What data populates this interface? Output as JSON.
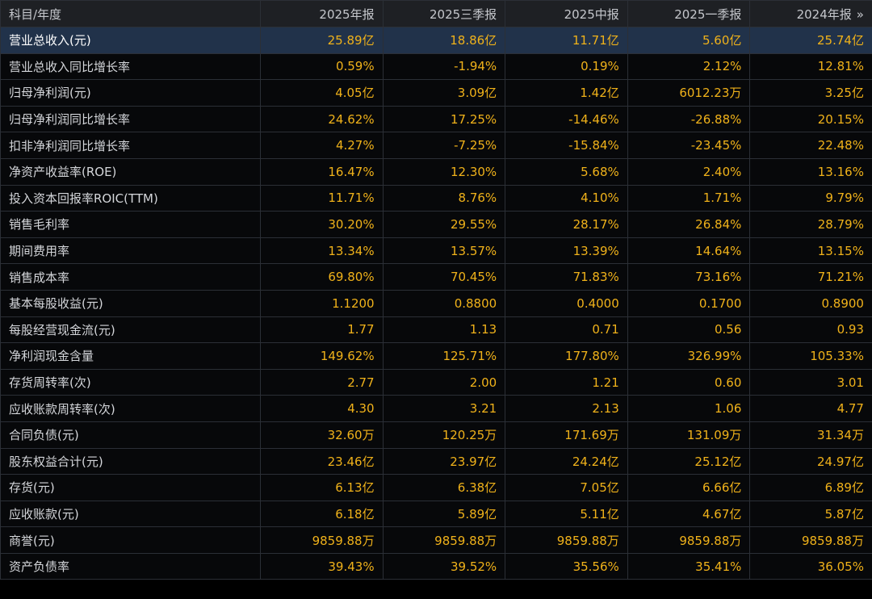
{
  "header": {
    "label_col": "科目/年度",
    "columns": [
      "2025年报",
      "2025三季报",
      "2025中报",
      "2025一季报",
      "2024年报"
    ],
    "more_icon": "»"
  },
  "rows": [
    {
      "label": "营业总收入(元)",
      "values": [
        "25.89亿",
        "18.86亿",
        "11.71亿",
        "5.60亿",
        "25.74亿"
      ],
      "highlight": true
    },
    {
      "label": "营业总收入同比增长率",
      "values": [
        "0.59%",
        "-1.94%",
        "0.19%",
        "2.12%",
        "12.81%"
      ]
    },
    {
      "label": "归母净利润(元)",
      "values": [
        "4.05亿",
        "3.09亿",
        "1.42亿",
        "6012.23万",
        "3.25亿"
      ]
    },
    {
      "label": "归母净利润同比增长率",
      "values": [
        "24.62%",
        "17.25%",
        "-14.46%",
        "-26.88%",
        "20.15%"
      ]
    },
    {
      "label": "扣非净利润同比增长率",
      "values": [
        "4.27%",
        "-7.25%",
        "-15.84%",
        "-23.45%",
        "22.48%"
      ]
    },
    {
      "label": "净资产收益率(ROE)",
      "values": [
        "16.47%",
        "12.30%",
        "5.68%",
        "2.40%",
        "13.16%"
      ]
    },
    {
      "label": "投入资本回报率ROIC(TTM)",
      "values": [
        "11.71%",
        "8.76%",
        "4.10%",
        "1.71%",
        "9.79%"
      ]
    },
    {
      "label": "销售毛利率",
      "values": [
        "30.20%",
        "29.55%",
        "28.17%",
        "26.84%",
        "28.79%"
      ]
    },
    {
      "label": "期间费用率",
      "values": [
        "13.34%",
        "13.57%",
        "13.39%",
        "14.64%",
        "13.15%"
      ]
    },
    {
      "label": "销售成本率",
      "values": [
        "69.80%",
        "70.45%",
        "71.83%",
        "73.16%",
        "71.21%"
      ]
    },
    {
      "label": "基本每股收益(元)",
      "values": [
        "1.1200",
        "0.8800",
        "0.4000",
        "0.1700",
        "0.8900"
      ]
    },
    {
      "label": "每股经营现金流(元)",
      "values": [
        "1.77",
        "1.13",
        "0.71",
        "0.56",
        "0.93"
      ]
    },
    {
      "label": "净利润现金含量",
      "values": [
        "149.62%",
        "125.71%",
        "177.80%",
        "326.99%",
        "105.33%"
      ]
    },
    {
      "label": "存货周转率(次)",
      "values": [
        "2.77",
        "2.00",
        "1.21",
        "0.60",
        "3.01"
      ]
    },
    {
      "label": "应收账款周转率(次)",
      "values": [
        "4.30",
        "3.21",
        "2.13",
        "1.06",
        "4.77"
      ]
    },
    {
      "label": "合同负债(元)",
      "values": [
        "32.60万",
        "120.25万",
        "171.69万",
        "131.09万",
        "31.34万"
      ]
    },
    {
      "label": "股东权益合计(元)",
      "values": [
        "23.46亿",
        "23.97亿",
        "24.24亿",
        "25.12亿",
        "24.97亿"
      ]
    },
    {
      "label": "存货(元)",
      "values": [
        "6.13亿",
        "6.38亿",
        "7.05亿",
        "6.66亿",
        "6.89亿"
      ]
    },
    {
      "label": "应收账款(元)",
      "values": [
        "6.18亿",
        "5.89亿",
        "5.11亿",
        "4.67亿",
        "5.87亿"
      ]
    },
    {
      "label": "商誉(元)",
      "values": [
        "9859.88万",
        "9859.88万",
        "9859.88万",
        "9859.88万",
        "9859.88万"
      ]
    },
    {
      "label": "资产负债率",
      "values": [
        "39.43%",
        "39.52%",
        "35.56%",
        "35.41%",
        "36.05%"
      ]
    }
  ],
  "colors": {
    "value": "#f0b21a",
    "highlight_row": "#21324a",
    "grid": "#2b2f36"
  }
}
